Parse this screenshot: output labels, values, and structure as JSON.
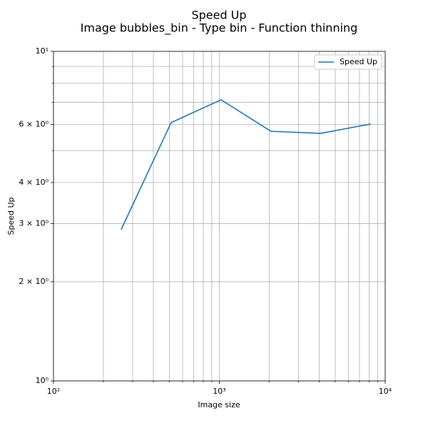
{
  "chart_data": {
    "type": "line",
    "title": "Speed Up",
    "subtitle": "Image bubbles_bin - Type bin - Function thinning",
    "x_label": "Image size",
    "y_label": "Speed Up",
    "x": [
      256,
      512,
      1024,
      2048,
      4096,
      8192
    ],
    "series": [
      {
        "name": "Speed Up",
        "color": "#1f77b4",
        "values": [
          2.88,
          6.08,
          7.13,
          5.72,
          5.64,
          6.02
        ]
      }
    ],
    "xscale": "log",
    "yscale": "log",
    "xlim": [
      100,
      10000
    ],
    "xticks": [
      {
        "value": 100,
        "label": "10²"
      },
      {
        "value": 1000,
        "label": "10³"
      },
      {
        "value": 10000,
        "label": "10⁴"
      }
    ],
    "xminor": [
      200,
      300,
      400,
      500,
      600,
      700,
      800,
      900,
      2000,
      3000,
      4000,
      5000,
      6000,
      7000,
      8000,
      9000
    ],
    "ylim": [
      1,
      10
    ],
    "yticks": [
      {
        "value": 1,
        "label": "10⁰"
      },
      {
        "value": 2,
        "label": "2 × 10⁰"
      },
      {
        "value": 3,
        "label": "3 × 10⁰"
      },
      {
        "value": 4,
        "label": "4 × 10⁰"
      },
      {
        "value": 6,
        "label": "6 × 10⁰"
      },
      {
        "value": 10,
        "label": "10¹"
      }
    ],
    "yminor": [
      5,
      7,
      8,
      9
    ],
    "grid": true,
    "legend": "upper right"
  }
}
